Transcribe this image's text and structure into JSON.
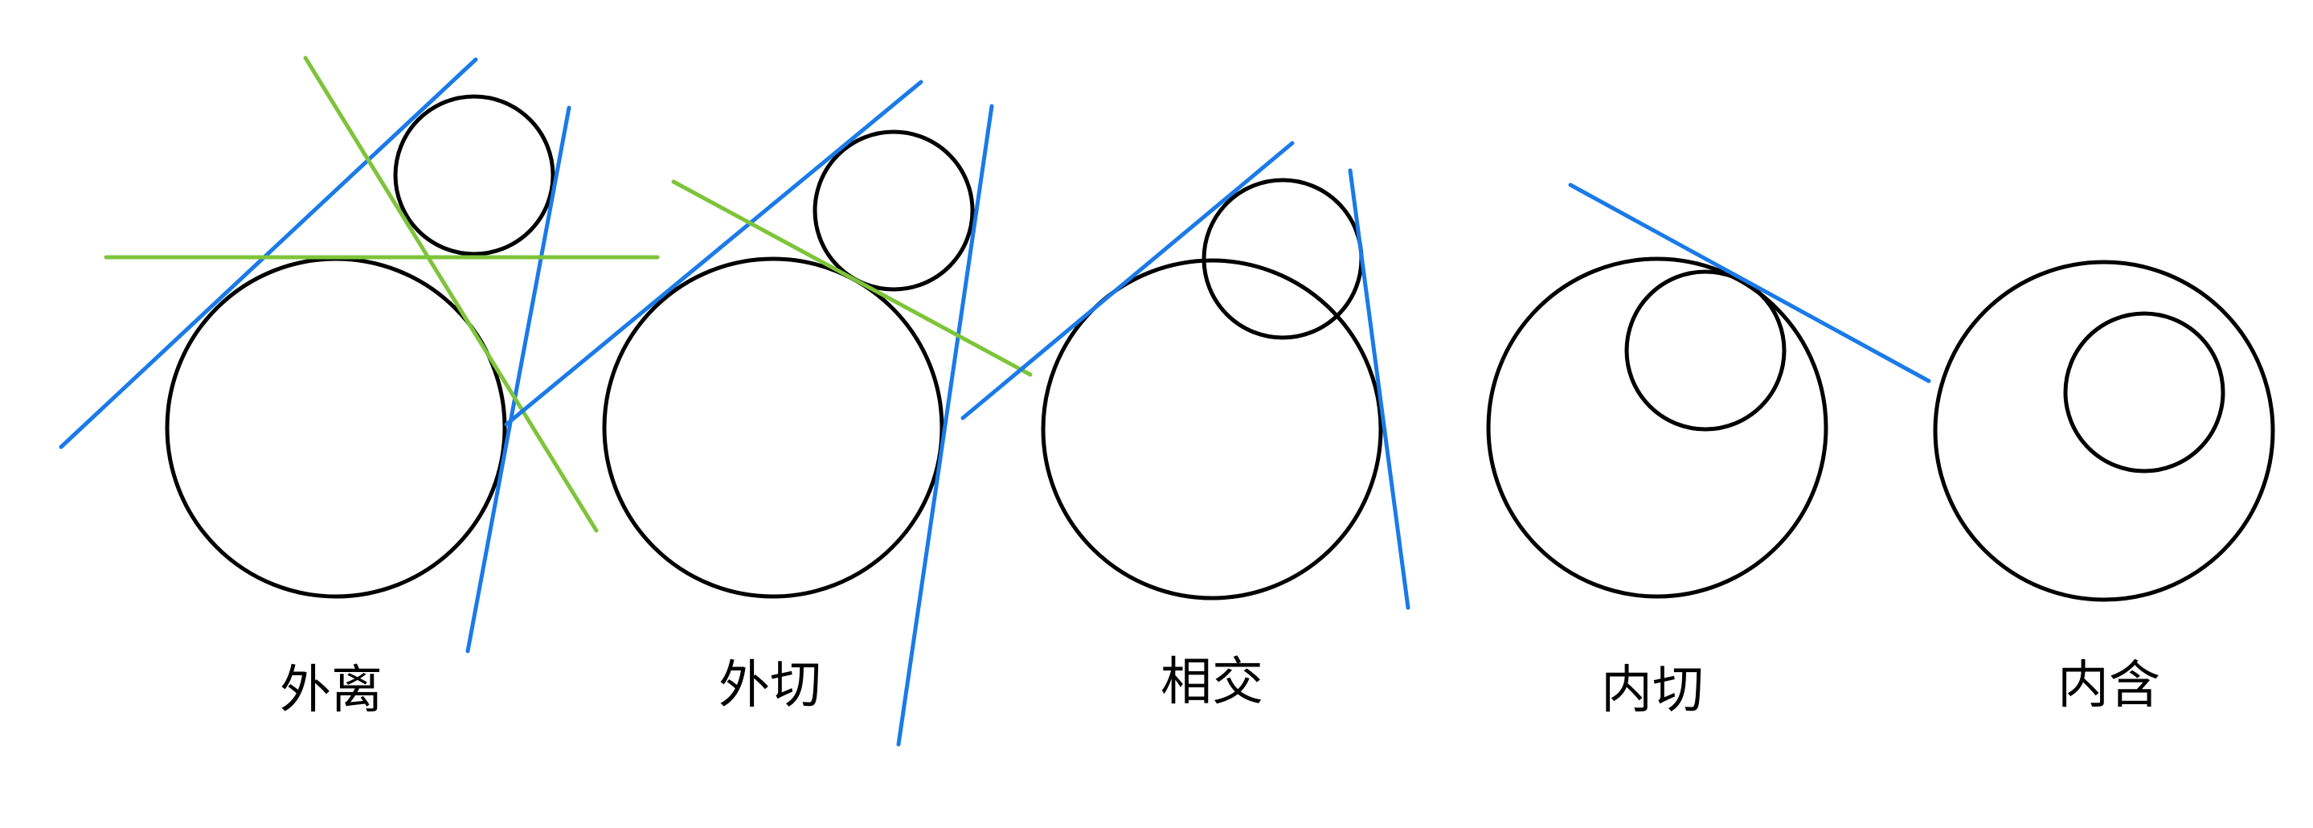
{
  "colors": {
    "circle": "#000000",
    "external_tangent": "#1a7ae8",
    "internal_tangent": "#7dc43a",
    "background": "#ffffff"
  },
  "panels": [
    {
      "id": "outer-separate",
      "label": "外离",
      "external_tangents": 2,
      "internal_tangents": 2
    },
    {
      "id": "outer-tangent",
      "label": "外切",
      "external_tangents": 2,
      "internal_tangents": 1
    },
    {
      "id": "intersecting",
      "label": "相交",
      "external_tangents": 2,
      "internal_tangents": 0
    },
    {
      "id": "inner-tangent",
      "label": "内切",
      "external_tangents": 1,
      "internal_tangents": 0
    },
    {
      "id": "contained",
      "label": "内含",
      "external_tangents": 0,
      "internal_tangents": 0
    }
  ]
}
